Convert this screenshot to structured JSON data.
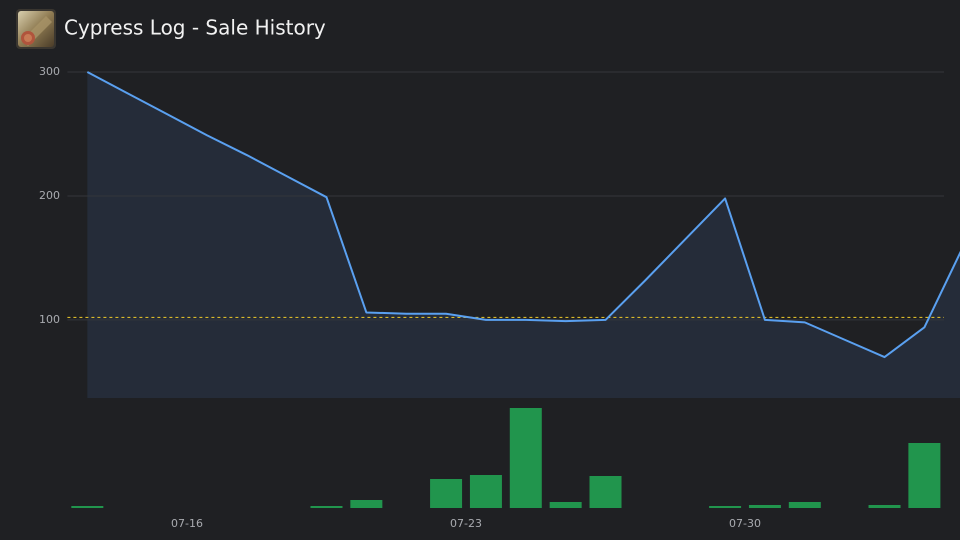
{
  "title": "Cypress Log - Sale History",
  "chart_data": [
    {
      "type": "line",
      "categories": [
        null,
        null,
        null,
        "07-16",
        null,
        null,
        null,
        null,
        null,
        null,
        "07-23",
        null,
        null,
        null,
        null,
        null,
        null,
        "07-30",
        null,
        null,
        null,
        null,
        null
      ],
      "values": [
        300,
        283,
        266,
        249,
        233,
        216,
        199,
        106,
        105,
        105,
        100,
        100,
        99,
        100,
        132,
        165,
        198,
        100,
        98,
        84,
        70,
        94,
        161
      ],
      "color": "#5aa0f0",
      "area_color": "#252c39",
      "ylim": [
        37,
        300
      ],
      "yticks": [
        100,
        200,
        300
      ],
      "grid": true,
      "reference_line": {
        "value": 102,
        "color": "#d9b92a"
      }
    },
    {
      "type": "bar",
      "values": [
        2,
        0,
        0,
        0,
        0,
        0,
        2,
        8,
        0,
        29,
        33,
        100,
        6,
        32,
        0,
        0,
        2,
        3,
        6,
        0,
        3,
        65,
        null
      ],
      "color": "#21954d",
      "ylim": [
        0,
        100
      ]
    }
  ]
}
